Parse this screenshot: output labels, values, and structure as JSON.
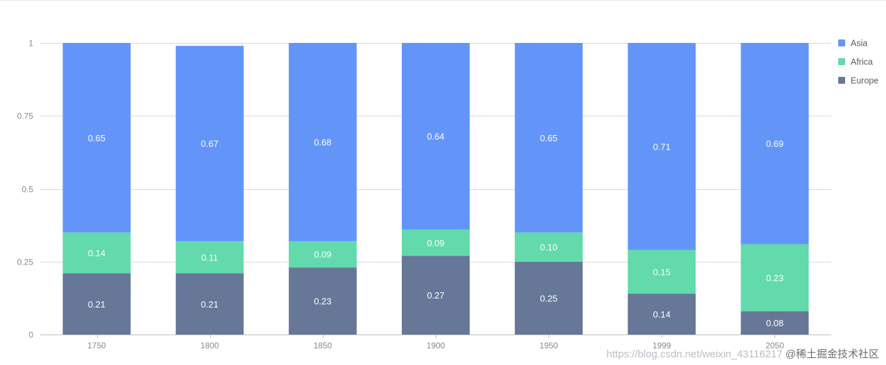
{
  "colors": {
    "Europe": "#667797",
    "Africa": "#62daab",
    "Asia": "#6395f9",
    "grid": "#d9d9d9",
    "axis": "#bfbfbf"
  },
  "chart_data": {
    "type": "bar",
    "stacked": true,
    "categories": [
      "1750",
      "1800",
      "1850",
      "1900",
      "1950",
      "1999",
      "2050"
    ],
    "series": [
      {
        "name": "Europe",
        "values": [
          0.21,
          0.21,
          0.23,
          0.27,
          0.25,
          0.14,
          0.08
        ]
      },
      {
        "name": "Africa",
        "values": [
          0.14,
          0.11,
          0.09,
          0.09,
          0.1,
          0.15,
          0.23
        ]
      },
      {
        "name": "Asia",
        "values": [
          0.65,
          0.67,
          0.68,
          0.64,
          0.65,
          0.71,
          0.69
        ]
      }
    ],
    "ylim": [
      0,
      1
    ],
    "yticks": [
      "0",
      "0.25",
      "0.5",
      "0.75",
      "1"
    ],
    "yticks_values": [
      0,
      0.25,
      0.5,
      0.75,
      1
    ],
    "legend": [
      "Asia",
      "Africa",
      "Europe"
    ],
    "legend_position": "top-right",
    "grid": true,
    "title": "",
    "xlabel": "",
    "ylabel": ""
  },
  "watermark": {
    "brand": "@稀土掘金技术社区",
    "url": "https://blog.csdn.net/weixin_43116217"
  }
}
